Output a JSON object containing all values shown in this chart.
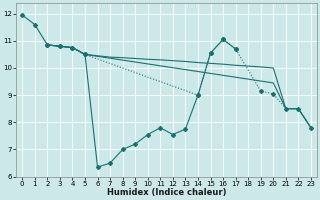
{
  "xlabel": "Humidex (Indice chaleur)",
  "background_color": "#cce8e8",
  "line_color": "#1a7070",
  "xlim": [
    -0.5,
    23.5
  ],
  "ylim": [
    6,
    12.4
  ],
  "yticks": [
    6,
    7,
    8,
    9,
    10,
    11,
    12
  ],
  "xticks": [
    0,
    1,
    2,
    3,
    4,
    5,
    6,
    7,
    8,
    9,
    10,
    11,
    12,
    13,
    14,
    15,
    16,
    17,
    18,
    19,
    20,
    21,
    22,
    23
  ],
  "series": [
    {
      "x": [
        0,
        1,
        2,
        3,
        4,
        5,
        6,
        7,
        8,
        9,
        10,
        11,
        12,
        13,
        14,
        15,
        16,
        17
      ],
      "y": [
        11.95,
        11.6,
        10.85,
        10.8,
        10.75,
        10.5,
        6.35,
        6.5,
        7.0,
        7.2,
        7.55,
        7.8,
        7.55,
        7.75,
        9.0,
        10.55,
        11.05,
        10.7
      ],
      "linestyle": "solid",
      "marker": true
    },
    {
      "x": [
        2,
        3,
        4,
        5,
        6,
        7,
        8,
        9,
        10,
        11,
        12,
        13,
        14,
        15,
        16,
        17,
        18,
        19,
        20,
        21,
        22,
        23
      ],
      "y": [
        10.85,
        10.8,
        10.75,
        10.5,
        10.45,
        10.4,
        10.38,
        10.35,
        10.32,
        10.3,
        10.27,
        10.24,
        10.2,
        10.17,
        10.14,
        10.1,
        10.07,
        10.04,
        10.0,
        8.5,
        8.5,
        7.8
      ],
      "linestyle": "solid",
      "marker": false
    },
    {
      "x": [
        2,
        3,
        4,
        5,
        6,
        7,
        8,
        9,
        10,
        11,
        12,
        13,
        14,
        15,
        16,
        17,
        18,
        19,
        20,
        21,
        22,
        23
      ],
      "y": [
        10.85,
        10.8,
        10.75,
        10.5,
        10.43,
        10.36,
        10.29,
        10.22,
        10.15,
        10.08,
        10.01,
        9.94,
        9.87,
        9.8,
        9.73,
        9.66,
        9.59,
        9.52,
        9.45,
        8.5,
        8.5,
        7.8
      ],
      "linestyle": "solid",
      "marker": false
    },
    {
      "x": [
        2,
        3,
        4,
        5,
        14,
        15,
        16,
        17,
        19,
        20,
        21,
        22,
        23
      ],
      "y": [
        10.85,
        10.8,
        10.75,
        10.5,
        9.0,
        10.55,
        11.05,
        10.7,
        9.15,
        9.05,
        8.5,
        8.5,
        7.8
      ],
      "linestyle": "dotted",
      "marker": true
    }
  ]
}
